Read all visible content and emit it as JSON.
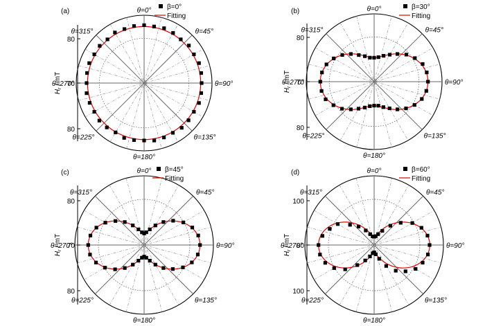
{
  "chart_data": [
    {
      "panel": "(a)",
      "type": "scatter",
      "coordinate_system": "polar",
      "ylabel": "H_r / mT",
      "r_ticks": [
        80,
        70,
        80
      ],
      "r_range": [
        67,
        82
      ],
      "angle_labels": [
        "θ=0°",
        "θ=45°",
        "θ=90°",
        "θ=135°",
        "θ=180°",
        "θ=225°",
        "θ=270°",
        "θ=315°"
      ],
      "legend": {
        "position": "top-right",
        "marker_label": "β=0°",
        "line_label": "Fitting"
      },
      "model": {
        "base": 79.5,
        "amp2": 0.0,
        "amp1": 0.0
      },
      "series": [
        {
          "name": "β=0°",
          "kind": "markers",
          "color": "#000000",
          "theta_deg": [
            0,
            10,
            20,
            30,
            40,
            50,
            60,
            70,
            80,
            90,
            100,
            110,
            120,
            130,
            140,
            150,
            160,
            170,
            180,
            190,
            200,
            210,
            220,
            230,
            240,
            250,
            260,
            270,
            280,
            290,
            300,
            310,
            320,
            330,
            340,
            350
          ],
          "r_mT": [
            79.8,
            79.7,
            79.9,
            79.8,
            79.6,
            79.9,
            79.7,
            79.9,
            79.8,
            79.7,
            79.8,
            79.9,
            79.7,
            79.8,
            79.9,
            79.7,
            79.8,
            79.9,
            79.7,
            79.8,
            79.9,
            79.6,
            79.8,
            79.9,
            79.7,
            79.8,
            79.9,
            79.7,
            79.8,
            79.9,
            79.7,
            79.8,
            79.6,
            79.9,
            79.7,
            79.8
          ]
        },
        {
          "name": "Fitting",
          "kind": "line",
          "color": "#e00000"
        }
      ]
    },
    {
      "panel": "(b)",
      "type": "scatter",
      "coordinate_system": "polar",
      "ylabel": "H_r / mT",
      "r_ticks": [
        80,
        70,
        80
      ],
      "r_range": [
        67,
        82
      ],
      "angle_labels": [
        "θ=0°",
        "θ=45°",
        "θ=90°",
        "θ=135°",
        "θ=180°",
        "θ=225°",
        "θ=270°",
        "θ=315°"
      ],
      "legend": {
        "position": "top-right",
        "marker_label": "β=30°",
        "line_label": "Fitting"
      },
      "model": {
        "base": 75.6,
        "amp2": 3.3,
        "amp1": 0.0
      },
      "series": [
        {
          "name": "β=30°",
          "kind": "markers",
          "color": "#000000",
          "theta_deg": [
            0,
            10,
            20,
            30,
            40,
            50,
            60,
            70,
            80,
            90,
            100,
            110,
            120,
            130,
            140,
            150,
            160,
            170,
            180,
            190,
            200,
            210,
            220,
            230,
            240,
            250,
            260,
            270,
            280,
            290,
            300,
            310,
            320,
            330,
            340,
            350
          ],
          "r_mT": [
            72.3,
            72.5,
            73.1,
            73.9,
            75.0,
            76.3,
            77.4,
            78.4,
            78.8,
            78.9,
            78.7,
            78.2,
            77.3,
            76.2,
            75.0,
            73.8,
            73.0,
            72.4,
            72.3,
            72.5,
            73.1,
            73.9,
            75.0,
            76.3,
            77.4,
            78.4,
            78.8,
            78.9,
            78.7,
            78.2,
            77.3,
            76.2,
            75.0,
            73.8,
            73.0,
            72.4
          ]
        },
        {
          "name": "Fitting",
          "kind": "line",
          "color": "#e00000"
        }
      ]
    },
    {
      "panel": "(c)",
      "type": "scatter",
      "coordinate_system": "polar",
      "ylabel": "H_r / mT",
      "r_ticks": [
        80,
        70,
        80
      ],
      "r_range": [
        67,
        82
      ],
      "angle_labels": [
        "θ=0°",
        "θ=45°",
        "θ=90°",
        "θ=135°",
        "θ=180°",
        "θ=225°",
        "θ=270°",
        "θ=315°"
      ],
      "legend": {
        "position": "top-right",
        "marker_label": "β=45°",
        "line_label": "Fitting"
      },
      "model": {
        "base": 74.3,
        "amp2": 4.8,
        "amp1": 0.0
      },
      "series": [
        {
          "name": "β=45°",
          "kind": "markers",
          "color": "#000000",
          "theta_deg": [
            0,
            10,
            20,
            30,
            40,
            50,
            60,
            70,
            80,
            90,
            100,
            110,
            120,
            130,
            140,
            150,
            160,
            170,
            180,
            190,
            200,
            210,
            220,
            230,
            240,
            250,
            260,
            270,
            280,
            290,
            300,
            310,
            320,
            330,
            340,
            350
          ],
          "r_mT": [
            69.5,
            69.8,
            70.6,
            71.9,
            73.5,
            75.2,
            76.8,
            78.1,
            78.9,
            79.1,
            78.8,
            78.0,
            76.7,
            75.1,
            73.5,
            71.9,
            70.6,
            69.8,
            69.5,
            69.8,
            70.6,
            71.9,
            73.5,
            75.2,
            76.8,
            78.1,
            78.9,
            79.1,
            78.8,
            78.0,
            76.7,
            75.1,
            73.5,
            71.9,
            70.6,
            69.8
          ]
        },
        {
          "name": "Fitting",
          "kind": "line",
          "color": "#e00000"
        }
      ]
    },
    {
      "panel": "(d)",
      "type": "scatter",
      "coordinate_system": "polar",
      "ylabel": "H_r / mT",
      "r_ticks": [
        100,
        80,
        100
      ],
      "r_range": [
        73,
        106
      ],
      "angle_labels": [
        "θ=0°",
        "θ=45°",
        "θ=90°",
        "θ=135°",
        "θ=180°",
        "θ=225°",
        "θ=270°",
        "θ=315°"
      ],
      "legend": {
        "position": "top-right",
        "marker_label": "β=60°",
        "line_label": "Fitting"
      },
      "model": {
        "base": 88.0,
        "amp2": 11.5,
        "amp1": 0.0
      },
      "series": [
        {
          "name": "β=60°",
          "kind": "markers",
          "color": "#000000",
          "theta_deg": [
            0,
            10,
            20,
            30,
            40,
            50,
            60,
            70,
            80,
            90,
            100,
            110,
            120,
            130,
            140,
            150,
            160,
            170,
            180,
            190,
            200,
            210,
            220,
            230,
            240,
            250,
            260,
            270,
            280,
            290,
            300,
            310,
            320,
            330,
            340,
            350
          ],
          "r_mT": [
            77.0,
            77.3,
            78.5,
            80.8,
            85.0,
            89.5,
            94.0,
            97.0,
            98.8,
            99.4,
            99.0,
            97.6,
            95.8,
            92.5,
            89.0,
            84.5,
            80.0,
            77.5,
            76.5,
            77.0,
            78.8,
            81.5,
            85.5,
            91.0,
            95.0,
            97.8,
            99.2,
            99.5,
            98.0,
            95.5,
            93.0,
            88.0,
            84.5,
            81.0,
            78.5,
            77.2
          ]
        },
        {
          "name": "Fitting",
          "kind": "line",
          "color": "#e00000"
        }
      ]
    }
  ]
}
